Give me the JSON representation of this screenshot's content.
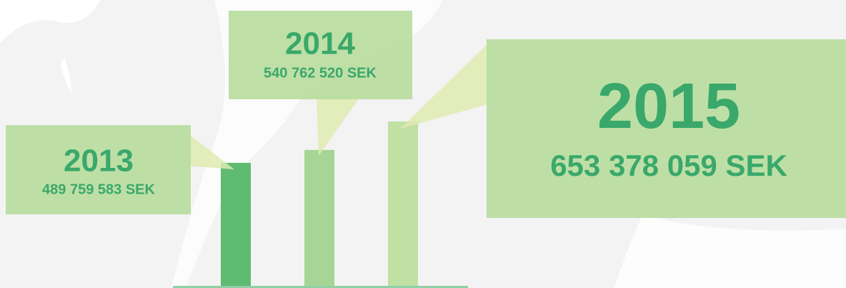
{
  "chart_data": {
    "type": "bar",
    "categories": [
      "2013",
      "2014",
      "2015"
    ],
    "values": [
      489759583,
      540762520,
      653378059
    ],
    "value_labels": [
      "489 759 583 SEK",
      "540 762 520 SEK",
      "653 378 059 SEK"
    ],
    "colors": [
      "#5fba72",
      "#a6d596",
      "#c0e0a4"
    ]
  }
}
